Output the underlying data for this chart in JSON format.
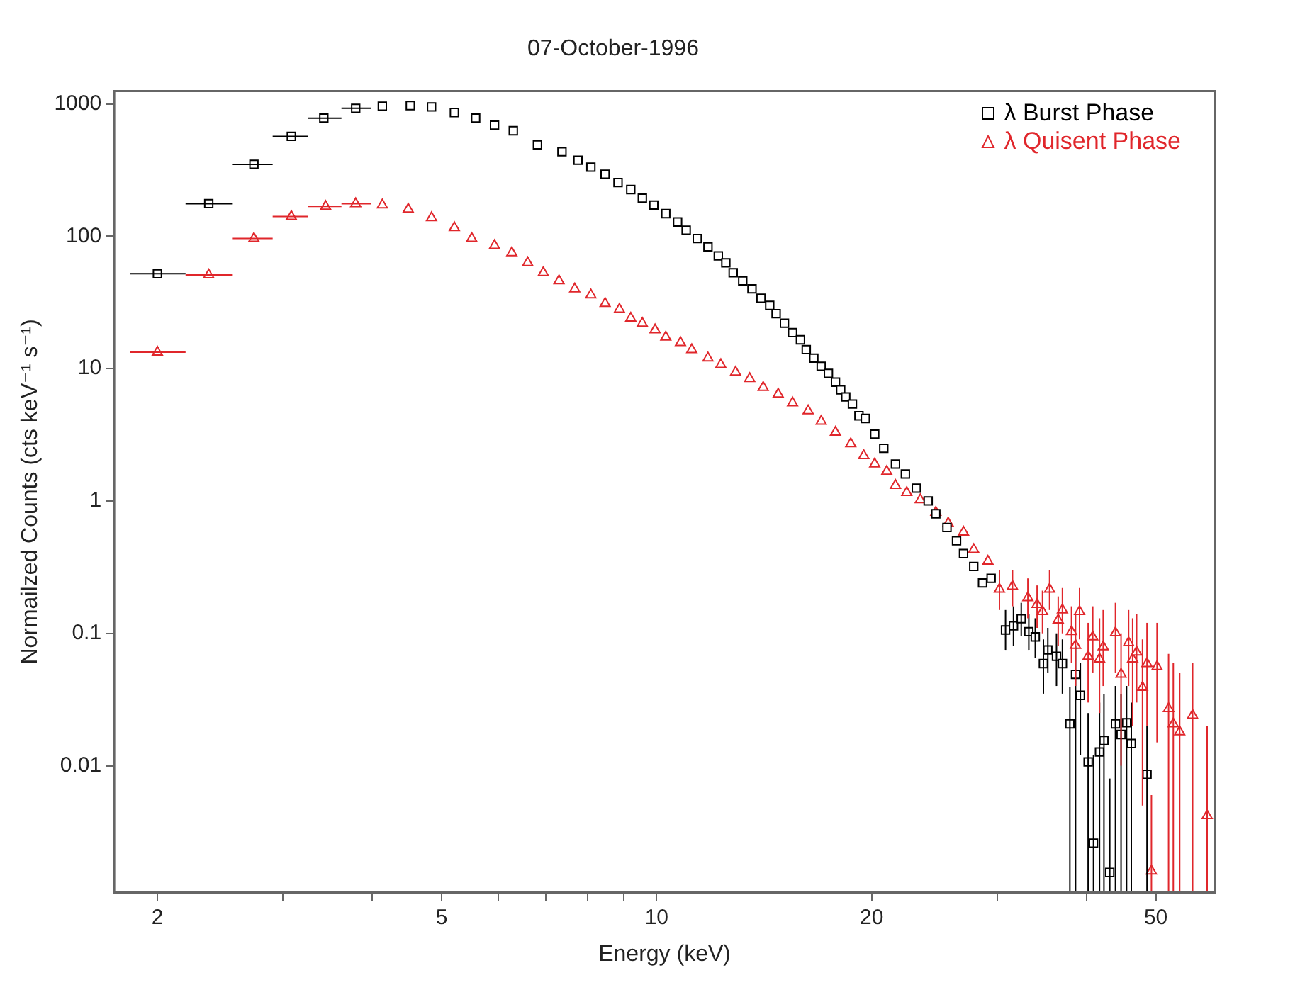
{
  "chart_data": {
    "type": "scatter",
    "title": "07-October-1996",
    "xlabel": "Energy (keV)",
    "ylabel": "Normailzed Counts (cts keV⁻¹ s⁻¹)",
    "log": "xy",
    "grid": false,
    "legend": "top right",
    "xlim": [
      1.74,
      60.5
    ],
    "xticks": [
      2,
      {
        "value": 3,
        "label": null
      },
      {
        "value": 4,
        "label": null
      },
      5,
      {
        "value": 6,
        "label": null
      },
      {
        "value": 7,
        "label": null
      },
      {
        "value": 8,
        "label": null
      },
      {
        "value": 9,
        "label": null
      },
      10,
      20,
      {
        "value": 30,
        "label": null
      },
      {
        "value": 40,
        "label": null
      },
      50
    ],
    "ylim": [
      0.0011,
      1250
    ],
    "yticks": [
      0.01,
      0.1,
      1,
      10,
      100,
      1000
    ],
    "series": [
      {
        "name": "λ Burst Phase",
        "color": "#000000",
        "marker": "square",
        "x": [
          2.0,
          2.36,
          2.73,
          3.08,
          3.42,
          3.79,
          4.13,
          4.52,
          4.84,
          5.21,
          5.58,
          5.93,
          6.3,
          6.81,
          7.37,
          7.76,
          8.09,
          8.47,
          8.83,
          9.2,
          9.55,
          9.91,
          10.3,
          10.7,
          11.0,
          11.4,
          11.8,
          12.2,
          12.5,
          12.8,
          13.2,
          13.6,
          14.0,
          14.4,
          14.7,
          15.1,
          15.5,
          15.9,
          16.2,
          16.6,
          17.0,
          17.4,
          17.8,
          18.1,
          18.4,
          18.8,
          19.2,
          19.6,
          20.2,
          20.8,
          21.6,
          22.3,
          23.1,
          24.0,
          24.6,
          25.5,
          26.3,
          26.9,
          27.8,
          28.6,
          29.4,
          30.8,
          31.6,
          32.4,
          33.2,
          33.9,
          34.8,
          35.3,
          36.3,
          37.0,
          37.9,
          38.6,
          39.2,
          40.2,
          40.9,
          41.7,
          42.3,
          43.1,
          43.9,
          44.7,
          45.5,
          46.2,
          48.6
        ],
        "values": [
          52,
          176,
          349,
          568,
          780,
          925,
          960,
          970,
          948,
          860,
          780,
          690,
          626,
          490,
          435,
          375,
          332,
          294,
          254,
          225,
          194,
          172,
          148,
          128,
          111,
          96,
          83,
          71,
          63,
          53,
          46,
          40,
          34,
          30,
          26,
          22,
          18.7,
          16.5,
          13.9,
          12.0,
          10.4,
          9.2,
          7.9,
          6.9,
          6.1,
          5.4,
          4.4,
          4.2,
          3.2,
          2.5,
          1.9,
          1.6,
          1.25,
          1.0,
          0.8,
          0.63,
          0.5,
          0.4,
          0.32,
          0.24,
          0.26,
          0.106,
          0.114,
          0.129,
          0.103,
          0.094,
          0.059,
          0.075,
          0.067,
          0.059,
          0.0207,
          0.049,
          0.034,
          0.0107,
          0.0026,
          0.0127,
          0.0155,
          0.00156,
          0.0207,
          0.0172,
          0.0211,
          0.0147,
          0.0086
        ],
        "errors": [
          null,
          null,
          null,
          null,
          null,
          null,
          null,
          null,
          null,
          null,
          null,
          null,
          null,
          null,
          null,
          null,
          null,
          null,
          null,
          null,
          null,
          null,
          null,
          null,
          null,
          null,
          null,
          null,
          null,
          null,
          null,
          null,
          null,
          null,
          null,
          null,
          null,
          null,
          null,
          null,
          null,
          null,
          null,
          null,
          null,
          null,
          null,
          null,
          null,
          null,
          null,
          null,
          null,
          null,
          null,
          null,
          null,
          null,
          null,
          null,
          null,
          [
            0.075,
            0.15
          ],
          [
            0.08,
            0.16
          ],
          [
            0.095,
            0.17
          ],
          [
            0.075,
            0.14
          ],
          [
            0.065,
            0.13
          ],
          [
            0.035,
            0.09
          ],
          [
            0.05,
            0.11
          ],
          [
            0.04,
            0.1
          ],
          [
            0.035,
            0.09
          ],
          [
            0.0011,
            0.039
          ],
          [
            0.0011,
            0.08
          ],
          [
            0.012,
            0.06
          ],
          [
            0.0011,
            0.025
          ],
          [
            0.0011,
            0.012
          ],
          [
            0.0011,
            0.03
          ],
          [
            0.0011,
            0.035
          ],
          [
            0.0011,
            0.008
          ],
          [
            0.0011,
            0.04
          ],
          [
            0.0011,
            0.035
          ],
          [
            0.0011,
            0.04
          ],
          [
            0.0011,
            0.03
          ],
          [
            0.0011,
            0.02
          ]
        ],
        "xerrors": [
          [
            1.83,
            2.19
          ],
          [
            2.19,
            2.55
          ],
          [
            2.55,
            2.9
          ],
          [
            2.9,
            3.25
          ],
          [
            3.25,
            3.62
          ],
          [
            3.62,
            3.98
          ],
          null,
          null,
          null,
          null,
          null,
          null,
          null,
          null,
          null,
          null,
          null,
          null,
          null,
          null,
          null,
          null,
          null,
          null,
          null,
          null,
          null,
          null,
          null,
          null,
          null,
          null,
          null,
          null,
          null,
          null,
          null,
          null,
          null,
          null,
          null,
          null,
          null,
          null,
          null,
          null,
          null,
          null,
          null,
          null,
          null,
          null,
          null,
          null,
          null,
          null,
          null,
          null,
          null,
          null,
          null,
          null,
          null,
          null,
          null,
          null,
          null,
          null,
          null,
          null,
          null,
          null,
          null,
          null,
          null,
          null,
          null,
          null,
          null,
          null,
          null,
          null,
          null
        ]
      },
      {
        "name": "λ Quisent Phase",
        "color": "#e0262b",
        "marker": "triangle",
        "x": [
          2.0,
          2.36,
          2.73,
          3.08,
          3.44,
          3.79,
          4.13,
          4.49,
          4.84,
          5.21,
          5.51,
          5.93,
          6.27,
          6.6,
          6.94,
          7.3,
          7.68,
          8.09,
          8.47,
          8.87,
          9.2,
          9.55,
          9.95,
          10.3,
          10.8,
          11.2,
          11.8,
          12.3,
          12.9,
          13.5,
          14.1,
          14.8,
          15.5,
          16.3,
          17.0,
          17.8,
          18.7,
          19.5,
          20.2,
          21.0,
          21.6,
          22.4,
          23.4,
          24.6,
          25.6,
          26.9,
          27.8,
          29.1,
          30.2,
          31.5,
          33.1,
          34.1,
          34.7,
          35.5,
          36.5,
          37.0,
          38.1,
          38.6,
          39.1,
          40.2,
          40.8,
          41.7,
          42.2,
          43.9,
          44.7,
          45.8,
          46.4,
          47.0,
          47.9,
          48.6,
          49.3,
          50.2,
          52.1,
          52.9,
          54.0,
          56.3,
          59.0
        ],
        "values": [
          13.3,
          51,
          96,
          141,
          168,
          176,
          172,
          160,
          138,
          116,
          96,
          85,
          75,
          63,
          53,
          46,
          40,
          36,
          31,
          28,
          24,
          22,
          19.6,
          17.3,
          15.7,
          13.9,
          12.0,
          10.7,
          9.4,
          8.4,
          7.2,
          6.4,
          5.5,
          4.8,
          4.0,
          3.3,
          2.7,
          2.2,
          1.9,
          1.67,
          1.31,
          1.16,
          1.02,
          0.82,
          0.68,
          0.58,
          0.43,
          0.35,
          0.215,
          0.226,
          0.186,
          0.165,
          0.146,
          0.215,
          0.126,
          0.15,
          0.103,
          0.081,
          0.146,
          0.067,
          0.094,
          0.064,
          0.079,
          0.101,
          0.049,
          0.085,
          0.064,
          0.072,
          0.039,
          0.059,
          0.0016,
          0.056,
          0.027,
          0.0207,
          0.018,
          0.024,
          0.0042
        ],
        "errors": [
          null,
          null,
          null,
          null,
          null,
          null,
          null,
          null,
          null,
          null,
          null,
          null,
          null,
          null,
          null,
          null,
          null,
          null,
          null,
          null,
          null,
          null,
          null,
          null,
          null,
          null,
          null,
          null,
          null,
          null,
          null,
          null,
          null,
          null,
          null,
          null,
          null,
          null,
          null,
          null,
          null,
          null,
          null,
          null,
          null,
          null,
          null,
          null,
          [
            0.15,
            0.3
          ],
          [
            0.16,
            0.3
          ],
          [
            0.13,
            0.26
          ],
          [
            0.11,
            0.23
          ],
          [
            0.1,
            0.21
          ],
          [
            0.15,
            0.3
          ],
          [
            0.08,
            0.19
          ],
          [
            0.1,
            0.22
          ],
          [
            0.06,
            0.16
          ],
          [
            0.04,
            0.14
          ],
          [
            0.09,
            0.22
          ],
          [
            0.03,
            0.12
          ],
          [
            0.05,
            0.16
          ],
          [
            0.025,
            0.13
          ],
          [
            0.04,
            0.15
          ],
          [
            0.05,
            0.17
          ],
          [
            0.01,
            0.1
          ],
          [
            0.04,
            0.15
          ],
          [
            0.02,
            0.13
          ],
          [
            0.03,
            0.14
          ],
          [
            0.005,
            0.09
          ],
          [
            0.02,
            0.12
          ],
          [
            0.0011,
            0.006
          ],
          [
            0.015,
            0.12
          ],
          [
            0.0011,
            0.07
          ],
          [
            0.0011,
            0.06
          ],
          [
            0.0011,
            0.05
          ],
          [
            0.0011,
            0.06
          ],
          [
            0.0011,
            0.02
          ]
        ],
        "xerrors": [
          [
            1.83,
            2.19
          ],
          [
            2.19,
            2.55
          ],
          [
            2.55,
            2.9
          ],
          [
            2.9,
            3.25
          ],
          [
            3.25,
            3.62
          ],
          [
            3.62,
            3.98
          ],
          null,
          null,
          null,
          null,
          null,
          null,
          null,
          null,
          null,
          null,
          null,
          null,
          null,
          null,
          null,
          null,
          null,
          null,
          null,
          null,
          null,
          null,
          null,
          null,
          null,
          null,
          null,
          null,
          null,
          null,
          null,
          null,
          null,
          null,
          null,
          null,
          null,
          null,
          null,
          null,
          null,
          null,
          null,
          null,
          null,
          null,
          null,
          null,
          null,
          null,
          null,
          null,
          null,
          null,
          null,
          null,
          null,
          null,
          null,
          null,
          null,
          null,
          null,
          null,
          null,
          null,
          null,
          null,
          null,
          null,
          null
        ]
      }
    ]
  }
}
